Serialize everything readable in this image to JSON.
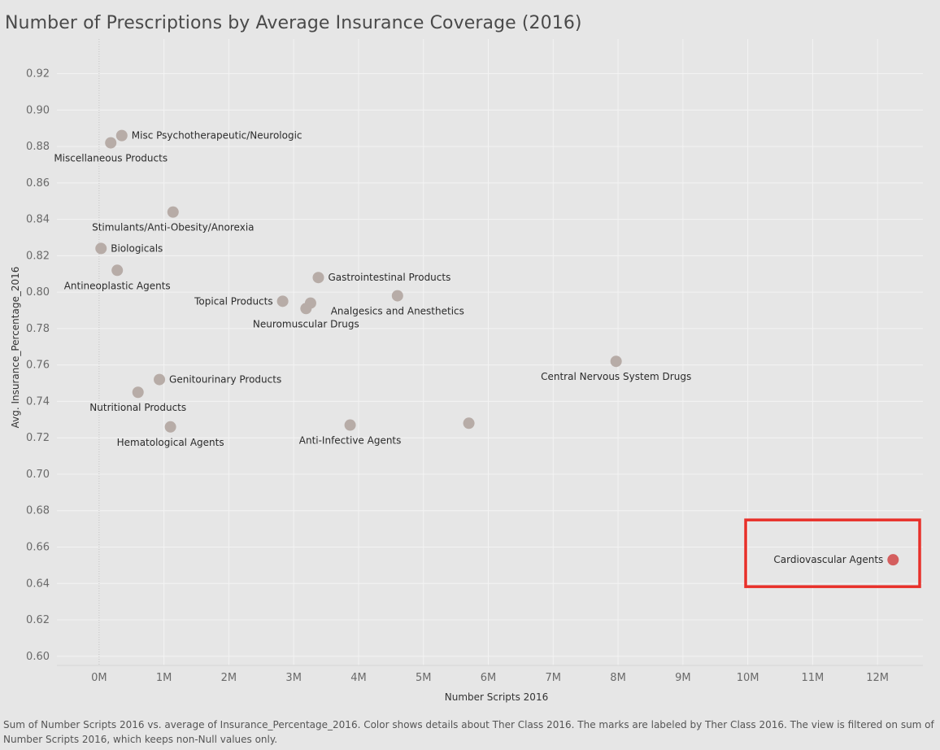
{
  "title": "Number of Prescriptions by Average Insurance Coverage (2016)",
  "caption": "Sum of Number Scripts 2016 vs. average of Insurance_Percentage_2016.  Color shows details about Ther Class 2016.  The marks are labeled by Ther Class 2016. The view is filtered on sum of Number Scripts 2016, which keeps non-Null values only.",
  "colors": {
    "point_default": "#b7aca7",
    "point_highlight": "#d45e5e",
    "highlight_box": "#e8302a",
    "gridline": "#f3f3f3",
    "background": "#e6e6e6"
  },
  "chart_data": {
    "type": "scatter",
    "title": "Number of Prescriptions by Average Insurance Coverage (2016)",
    "xlabel": "Number Scripts 2016",
    "ylabel": "Avg. Insurance_Percentage_2016",
    "xlim": [
      -650000,
      12700000
    ],
    "ylim": [
      0.595,
      0.939
    ],
    "x_ticks": [
      0,
      1000000,
      2000000,
      3000000,
      4000000,
      5000000,
      6000000,
      7000000,
      8000000,
      9000000,
      10000000,
      11000000,
      12000000
    ],
    "x_tick_labels": [
      "0M",
      "1M",
      "2M",
      "3M",
      "4M",
      "5M",
      "6M",
      "7M",
      "8M",
      "9M",
      "10M",
      "11M",
      "12M"
    ],
    "y_ticks": [
      0.6,
      0.62,
      0.64,
      0.66,
      0.68,
      0.7,
      0.72,
      0.74,
      0.76,
      0.78,
      0.8,
      0.82,
      0.84,
      0.86,
      0.88,
      0.9,
      0.92
    ],
    "y_tick_labels": [
      "0.60",
      "0.62",
      "0.64",
      "0.66",
      "0.68",
      "0.70",
      "0.72",
      "0.74",
      "0.76",
      "0.78",
      "0.80",
      "0.82",
      "0.84",
      "0.86",
      "0.88",
      "0.90",
      "0.92"
    ],
    "grid": true,
    "highlight": "Cardiovascular Agents",
    "points": [
      {
        "label": "Misc Psychotherapeutic/Neurologic",
        "x": 350000,
        "y": 0.886,
        "label_pos": "right"
      },
      {
        "label": "Miscellaneous Products",
        "x": 180000,
        "y": 0.882,
        "label_pos": "below"
      },
      {
        "label": "Stimulants/Anti-Obesity/Anorexia",
        "x": 1140000,
        "y": 0.844,
        "label_pos": "below"
      },
      {
        "label": "Biologicals",
        "x": 30000,
        "y": 0.824,
        "label_pos": "right"
      },
      {
        "label": "Antineoplastic Agents",
        "x": 280000,
        "y": 0.812,
        "label_pos": "below"
      },
      {
        "label": "Gastrointestinal Products",
        "x": 3380000,
        "y": 0.808,
        "label_pos": "right"
      },
      {
        "label": "Analgesics and Anesthetics",
        "x": 4600000,
        "y": 0.798,
        "label_pos": "below"
      },
      {
        "label": "Topical Products",
        "x": 2830000,
        "y": 0.795,
        "label_pos": "left"
      },
      {
        "label": "",
        "x": 3260000,
        "y": 0.794,
        "label_pos": "none"
      },
      {
        "label": "Neuromuscular Drugs",
        "x": 3190000,
        "y": 0.791,
        "label_pos": "below"
      },
      {
        "label": "Central Nervous System Drugs",
        "x": 7970000,
        "y": 0.762,
        "label_pos": "below"
      },
      {
        "label": "Genitourinary Products",
        "x": 930000,
        "y": 0.752,
        "label_pos": "right"
      },
      {
        "label": "Nutritional Products",
        "x": 600000,
        "y": 0.745,
        "label_pos": "below"
      },
      {
        "label": "Hematological Agents",
        "x": 1100000,
        "y": 0.726,
        "label_pos": "below"
      },
      {
        "label": "Anti-Infective Agents",
        "x": 3870000,
        "y": 0.727,
        "label_pos": "below"
      },
      {
        "label": "",
        "x": 5700000,
        "y": 0.728,
        "label_pos": "none"
      },
      {
        "label": "Cardiovascular Agents",
        "x": 12240000,
        "y": 0.653,
        "label_pos": "left"
      }
    ]
  }
}
